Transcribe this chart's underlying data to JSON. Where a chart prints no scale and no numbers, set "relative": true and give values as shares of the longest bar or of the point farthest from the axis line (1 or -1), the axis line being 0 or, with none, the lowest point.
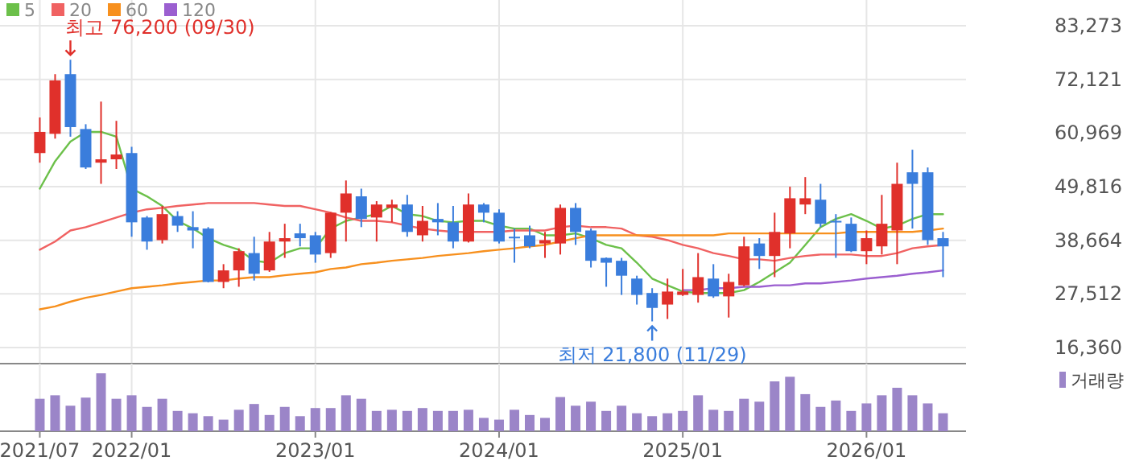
{
  "chart_data": [
    {
      "type": "candlestick",
      "x": [
        "2021-07",
        "2021-08",
        "2021-09",
        "2021-10",
        "2021-11",
        "2021-12",
        "2022-01",
        "2022-02",
        "2022-03",
        "2022-04",
        "2022-05",
        "2022-06",
        "2022-07",
        "2022-08",
        "2022-09",
        "2022-10",
        "2022-11",
        "2022-12",
        "2023-01",
        "2023-02",
        "2023-03",
        "2023-04",
        "2023-05",
        "2023-06",
        "2023-07",
        "2023-08",
        "2023-09",
        "2023-10",
        "2023-11",
        "2023-12",
        "2024-01",
        "2024-02",
        "2024-03",
        "2024-04",
        "2024-05",
        "2024-06",
        "2024-07",
        "2024-08",
        "2024-09",
        "2024-10",
        "2024-11",
        "2024-12",
        "2025-01",
        "2025-02",
        "2025-03",
        "2025-04",
        "2025-05",
        "2025-06",
        "2025-07",
        "2025-08",
        "2025-09",
        "2025-10",
        "2025-11",
        "2025-12",
        "2026-01",
        "2026-02",
        "2026-03",
        "2026-04",
        "2026-05",
        "2026-06"
      ],
      "ohlc": [
        [
          56800,
          64200,
          54800,
          61200
        ],
        [
          60800,
          73200,
          59800,
          71900
        ],
        [
          73200,
          76200,
          60200,
          62200
        ],
        [
          61800,
          62800,
          53500,
          53800
        ],
        [
          54800,
          67500,
          50400,
          55500
        ],
        [
          55500,
          63500,
          53500,
          56500
        ],
        [
          56800,
          58100,
          39400,
          42400
        ],
        [
          43400,
          43700,
          36700,
          38400
        ],
        [
          38700,
          45800,
          38000,
          44100
        ],
        [
          43700,
          44700,
          40400,
          41700
        ],
        [
          41400,
          44700,
          37000,
          40700
        ],
        [
          41100,
          41400,
          29900,
          30000
        ],
        [
          30000,
          33700,
          28700,
          32400
        ],
        [
          32400,
          37000,
          29000,
          36400
        ],
        [
          36000,
          39400,
          30300,
          31700
        ],
        [
          32400,
          40400,
          32100,
          38400
        ],
        [
          38400,
          42100,
          35000,
          39100
        ],
        [
          40100,
          42100,
          37400,
          39100
        ],
        [
          39700,
          40400,
          34000,
          35700
        ],
        [
          36000,
          44500,
          35000,
          44400
        ],
        [
          44400,
          51100,
          38400,
          48400
        ],
        [
          47800,
          49400,
          41400,
          43100
        ],
        [
          43400,
          46800,
          38400,
          46100
        ],
        [
          45400,
          47100,
          42400,
          46100
        ],
        [
          46100,
          48100,
          39400,
          40400
        ],
        [
          39700,
          45800,
          38400,
          42700
        ],
        [
          43100,
          46400,
          39700,
          42400
        ],
        [
          42400,
          45800,
          37000,
          38400
        ],
        [
          38400,
          48400,
          38200,
          46100
        ],
        [
          46100,
          46400,
          42400,
          44400
        ],
        [
          44400,
          45100,
          38000,
          38400
        ],
        [
          39400,
          41100,
          34000,
          39100
        ],
        [
          39700,
          41700,
          37000,
          37400
        ],
        [
          38000,
          40400,
          35000,
          38700
        ],
        [
          38000,
          46100,
          35700,
          45400
        ],
        [
          45400,
          46400,
          37700,
          40400
        ],
        [
          40700,
          41100,
          33000,
          34400
        ],
        [
          35000,
          35100,
          29000,
          34000
        ],
        [
          34400,
          35000,
          27300,
          31300
        ],
        [
          30700,
          31300,
          25300,
          27300
        ],
        [
          27700,
          28700,
          21800,
          24600
        ],
        [
          25300,
          30700,
          22300,
          28000
        ],
        [
          27300,
          32700,
          27100,
          28000
        ],
        [
          27300,
          36000,
          25700,
          31000
        ],
        [
          30700,
          33700,
          26700,
          27000
        ],
        [
          27000,
          31700,
          22600,
          30000
        ],
        [
          29300,
          39400,
          29100,
          37400
        ],
        [
          38000,
          39100,
          32700,
          35400
        ],
        [
          35400,
          44400,
          31000,
          40400
        ],
        [
          40100,
          49800,
          37000,
          47400
        ],
        [
          46100,
          51800,
          44100,
          47400
        ],
        [
          47100,
          50400,
          41400,
          42100
        ],
        [
          42700,
          44100,
          35000,
          42400
        ],
        [
          42100,
          43400,
          36200,
          36400
        ],
        [
          36400,
          40700,
          33700,
          39100
        ],
        [
          37400,
          48100,
          35700,
          42100
        ],
        [
          40700,
          54800,
          33700,
          50400
        ],
        [
          52800,
          57500,
          41100,
          50400
        ],
        [
          52800,
          53800,
          37700,
          38700
        ],
        [
          39100,
          40400,
          31000,
          37400
        ]
      ],
      "colors": [
        "#e0302b",
        "#e0302b",
        "#3a7ddc",
        "#3a7ddc",
        "#e0302b",
        "#e0302b",
        "#3a7ddc",
        "#3a7ddc",
        "#e0302b",
        "#3a7ddc",
        "#3a7ddc",
        "#3a7ddc",
        "#e0302b",
        "#e0302b",
        "#3a7ddc",
        "#e0302b",
        "#e0302b",
        "#3a7ddc",
        "#3a7ddc",
        "#e0302b",
        "#e0302b",
        "#3a7ddc",
        "#e0302b",
        "#e0302b",
        "#3a7ddc",
        "#e0302b",
        "#3a7ddc",
        "#3a7ddc",
        "#e0302b",
        "#3a7ddc",
        "#3a7ddc",
        "#3a7ddc",
        "#3a7ddc",
        "#e0302b",
        "#e0302b",
        "#3a7ddc",
        "#3a7ddc",
        "#3a7ddc",
        "#3a7ddc",
        "#3a7ddc",
        "#3a7ddc",
        "#e0302b",
        "#e0302b",
        "#e0302b",
        "#3a7ddc",
        "#e0302b",
        "#e0302b",
        "#3a7ddc",
        "#e0302b",
        "#e0302b",
        "#e0302b",
        "#3a7ddc",
        "#3a7ddc",
        "#3a7ddc",
        "#e0302b",
        "#e0302b",
        "#e0302b",
        "#3a7ddc",
        "#3a7ddc",
        "#3a7ddc"
      ],
      "series": [
        {
          "type": "line",
          "name": "5",
          "color": "#6cc04a",
          "values": [
            49400,
            55100,
            59200,
            61200,
            61200,
            60200,
            49400,
            47800,
            45800,
            42700,
            41100,
            39100,
            37700,
            36700,
            34400,
            34000,
            36000,
            37000,
            37000,
            41100,
            42700,
            43400,
            44100,
            45800,
            44100,
            43700,
            42700,
            42400,
            42700,
            42700,
            41700,
            41100,
            41100,
            39700,
            39700,
            40100,
            39100,
            37700,
            37000,
            34000,
            30700,
            29300,
            28000,
            27700,
            27700,
            27700,
            28300,
            30000,
            32000,
            34000,
            37700,
            41400,
            43100,
            44100,
            42700,
            41100,
            41700,
            43100,
            44100,
            44100
          ]
        },
        {
          "type": "line",
          "name": "20",
          "color": "#f06262",
          "values": [
            36700,
            38400,
            40700,
            41400,
            42400,
            43400,
            44400,
            45100,
            45400,
            45800,
            46100,
            46400,
            46400,
            46400,
            46400,
            46100,
            45800,
            45800,
            45100,
            44400,
            43400,
            42700,
            42700,
            42400,
            41700,
            41100,
            40700,
            40400,
            40400,
            40400,
            40400,
            40700,
            40700,
            40700,
            41400,
            41700,
            41400,
            41400,
            41100,
            39700,
            39400,
            38700,
            37700,
            37000,
            36000,
            35400,
            34700,
            34700,
            34400,
            35000,
            35400,
            35700,
            35700,
            35700,
            35400,
            35400,
            36000,
            37000,
            37400,
            37700
          ]
        },
        {
          "type": "line",
          "name": "60",
          "color": "#f7901e",
          "values": [
            24300,
            24900,
            25900,
            26700,
            27300,
            28000,
            28700,
            29000,
            29300,
            29700,
            30000,
            30300,
            30300,
            30700,
            31000,
            31000,
            31400,
            31700,
            32000,
            32700,
            33000,
            33700,
            34000,
            34400,
            34700,
            35000,
            35400,
            35700,
            36000,
            36400,
            36700,
            37000,
            37400,
            37700,
            38400,
            39100,
            39700,
            39700,
            39700,
            39700,
            39700,
            39700,
            39700,
            39700,
            39700,
            40100,
            40100,
            40100,
            40100,
            40100,
            40100,
            40100,
            40100,
            40400,
            40400,
            40400,
            40400,
            40400,
            40700,
            41100
          ]
        },
        {
          "type": "line",
          "name": "120",
          "color": "#9b5fd0",
          "values": [
            null,
            null,
            null,
            null,
            null,
            null,
            null,
            null,
            null,
            null,
            null,
            null,
            null,
            null,
            null,
            null,
            null,
            null,
            null,
            null,
            null,
            null,
            null,
            null,
            null,
            null,
            null,
            null,
            null,
            null,
            null,
            null,
            null,
            null,
            null,
            null,
            null,
            null,
            null,
            null,
            null,
            null,
            28300,
            28300,
            28700,
            28700,
            29000,
            29000,
            29300,
            29300,
            29700,
            29700,
            30000,
            30300,
            30700,
            31000,
            31300,
            31700,
            32000,
            32400
          ]
        }
      ],
      "annotations": [
        {
          "text": "최고 76,200 (09/30)",
          "x": "2021-09",
          "y": 76200
        },
        {
          "text": "최저 21,800 (11/29)",
          "x": "2024-11",
          "y": 21800
        }
      ],
      "xlim": [
        "2021-04-13",
        "2026-07-16"
      ],
      "xticks": [
        {
          "value": "2021-07",
          "label": null
        },
        {
          "value": "2022-01",
          "label": null
        },
        {
          "value": "2023-01",
          "label": null
        },
        {
          "value": "2024-01",
          "label": null
        },
        {
          "value": "2025-01",
          "label": null
        },
        {
          "value": "2026-01",
          "label": null
        }
      ],
      "ylim": [
        16360,
        83273
      ],
      "yticks": [
        {
          "value": 16360,
          "label": "16,360"
        },
        {
          "value": 27512,
          "label": "27,512"
        },
        {
          "value": 38664,
          "label": "38,664"
        },
        {
          "value": 49816,
          "label": "49,816"
        },
        {
          "value": 60969,
          "label": "60,969"
        },
        {
          "value": 72121,
          "label": "72,121"
        },
        {
          "value": 83273,
          "label": "83,273"
        }
      ],
      "grid": true,
      "legend": "top left",
      "tick_labels": "y"
    },
    {
      "type": "bar",
      "relative": true,
      "x": [
        "2021-07",
        "2021-08",
        "2021-09",
        "2021-10",
        "2021-11",
        "2021-12",
        "2022-01",
        "2022-02",
        "2022-03",
        "2022-04",
        "2022-05",
        "2022-06",
        "2022-07",
        "2022-08",
        "2022-09",
        "2022-10",
        "2022-11",
        "2022-12",
        "2023-01",
        "2023-02",
        "2023-03",
        "2023-04",
        "2023-05",
        "2023-06",
        "2023-07",
        "2023-08",
        "2023-09",
        "2023-10",
        "2023-11",
        "2023-12",
        "2024-01",
        "2024-02",
        "2024-03",
        "2024-04",
        "2024-05",
        "2024-06",
        "2024-07",
        "2024-08",
        "2024-09",
        "2024-10",
        "2024-11",
        "2024-12",
        "2025-01",
        "2025-02",
        "2025-03",
        "2025-04",
        "2025-05",
        "2025-06",
        "2025-07",
        "2025-08",
        "2025-09",
        "2025-10",
        "2025-11",
        "2025-12",
        "2026-01",
        "2026-02",
        "2026-03",
        "2026-04",
        "2026-05",
        "2026-06"
      ],
      "series": [
        {
          "name": "거래량",
          "color": "#9b85c8",
          "values": [
            0.56,
            0.62,
            0.44,
            0.58,
            1,
            0.56,
            0.62,
            0.42,
            0.56,
            0.35,
            0.31,
            0.26,
            0.2,
            0.37,
            0.47,
            0.28,
            0.42,
            0.26,
            0.4,
            0.4,
            0.62,
            0.56,
            0.35,
            0.37,
            0.35,
            0.4,
            0.35,
            0.35,
            0.37,
            0.23,
            0.2,
            0.37,
            0.28,
            0.23,
            0.59,
            0.44,
            0.51,
            0.35,
            0.44,
            0.31,
            0.26,
            0.31,
            0.35,
            0.62,
            0.37,
            0.35,
            0.56,
            0.51,
            0.86,
            0.94,
            0.64,
            0.42,
            0.53,
            0.35,
            0.48,
            0.62,
            0.75,
            0.62,
            0.48,
            0.31
          ]
        }
      ],
      "xlim": [
        "2021-04-13",
        "2026-07-16"
      ],
      "xticks": [
        {
          "value": "2021-07",
          "label": "2021/07"
        },
        {
          "value": "2022-01",
          "label": "2022/01"
        },
        {
          "value": "2023-01",
          "label": "2023/01"
        },
        {
          "value": "2024-01",
          "label": "2024/01"
        },
        {
          "value": "2025-01",
          "label": "2025/01"
        },
        {
          "value": "2026-01",
          "label": "2026/01"
        }
      ],
      "grid": true,
      "legend": "top right",
      "tick_labels": "x"
    }
  ]
}
